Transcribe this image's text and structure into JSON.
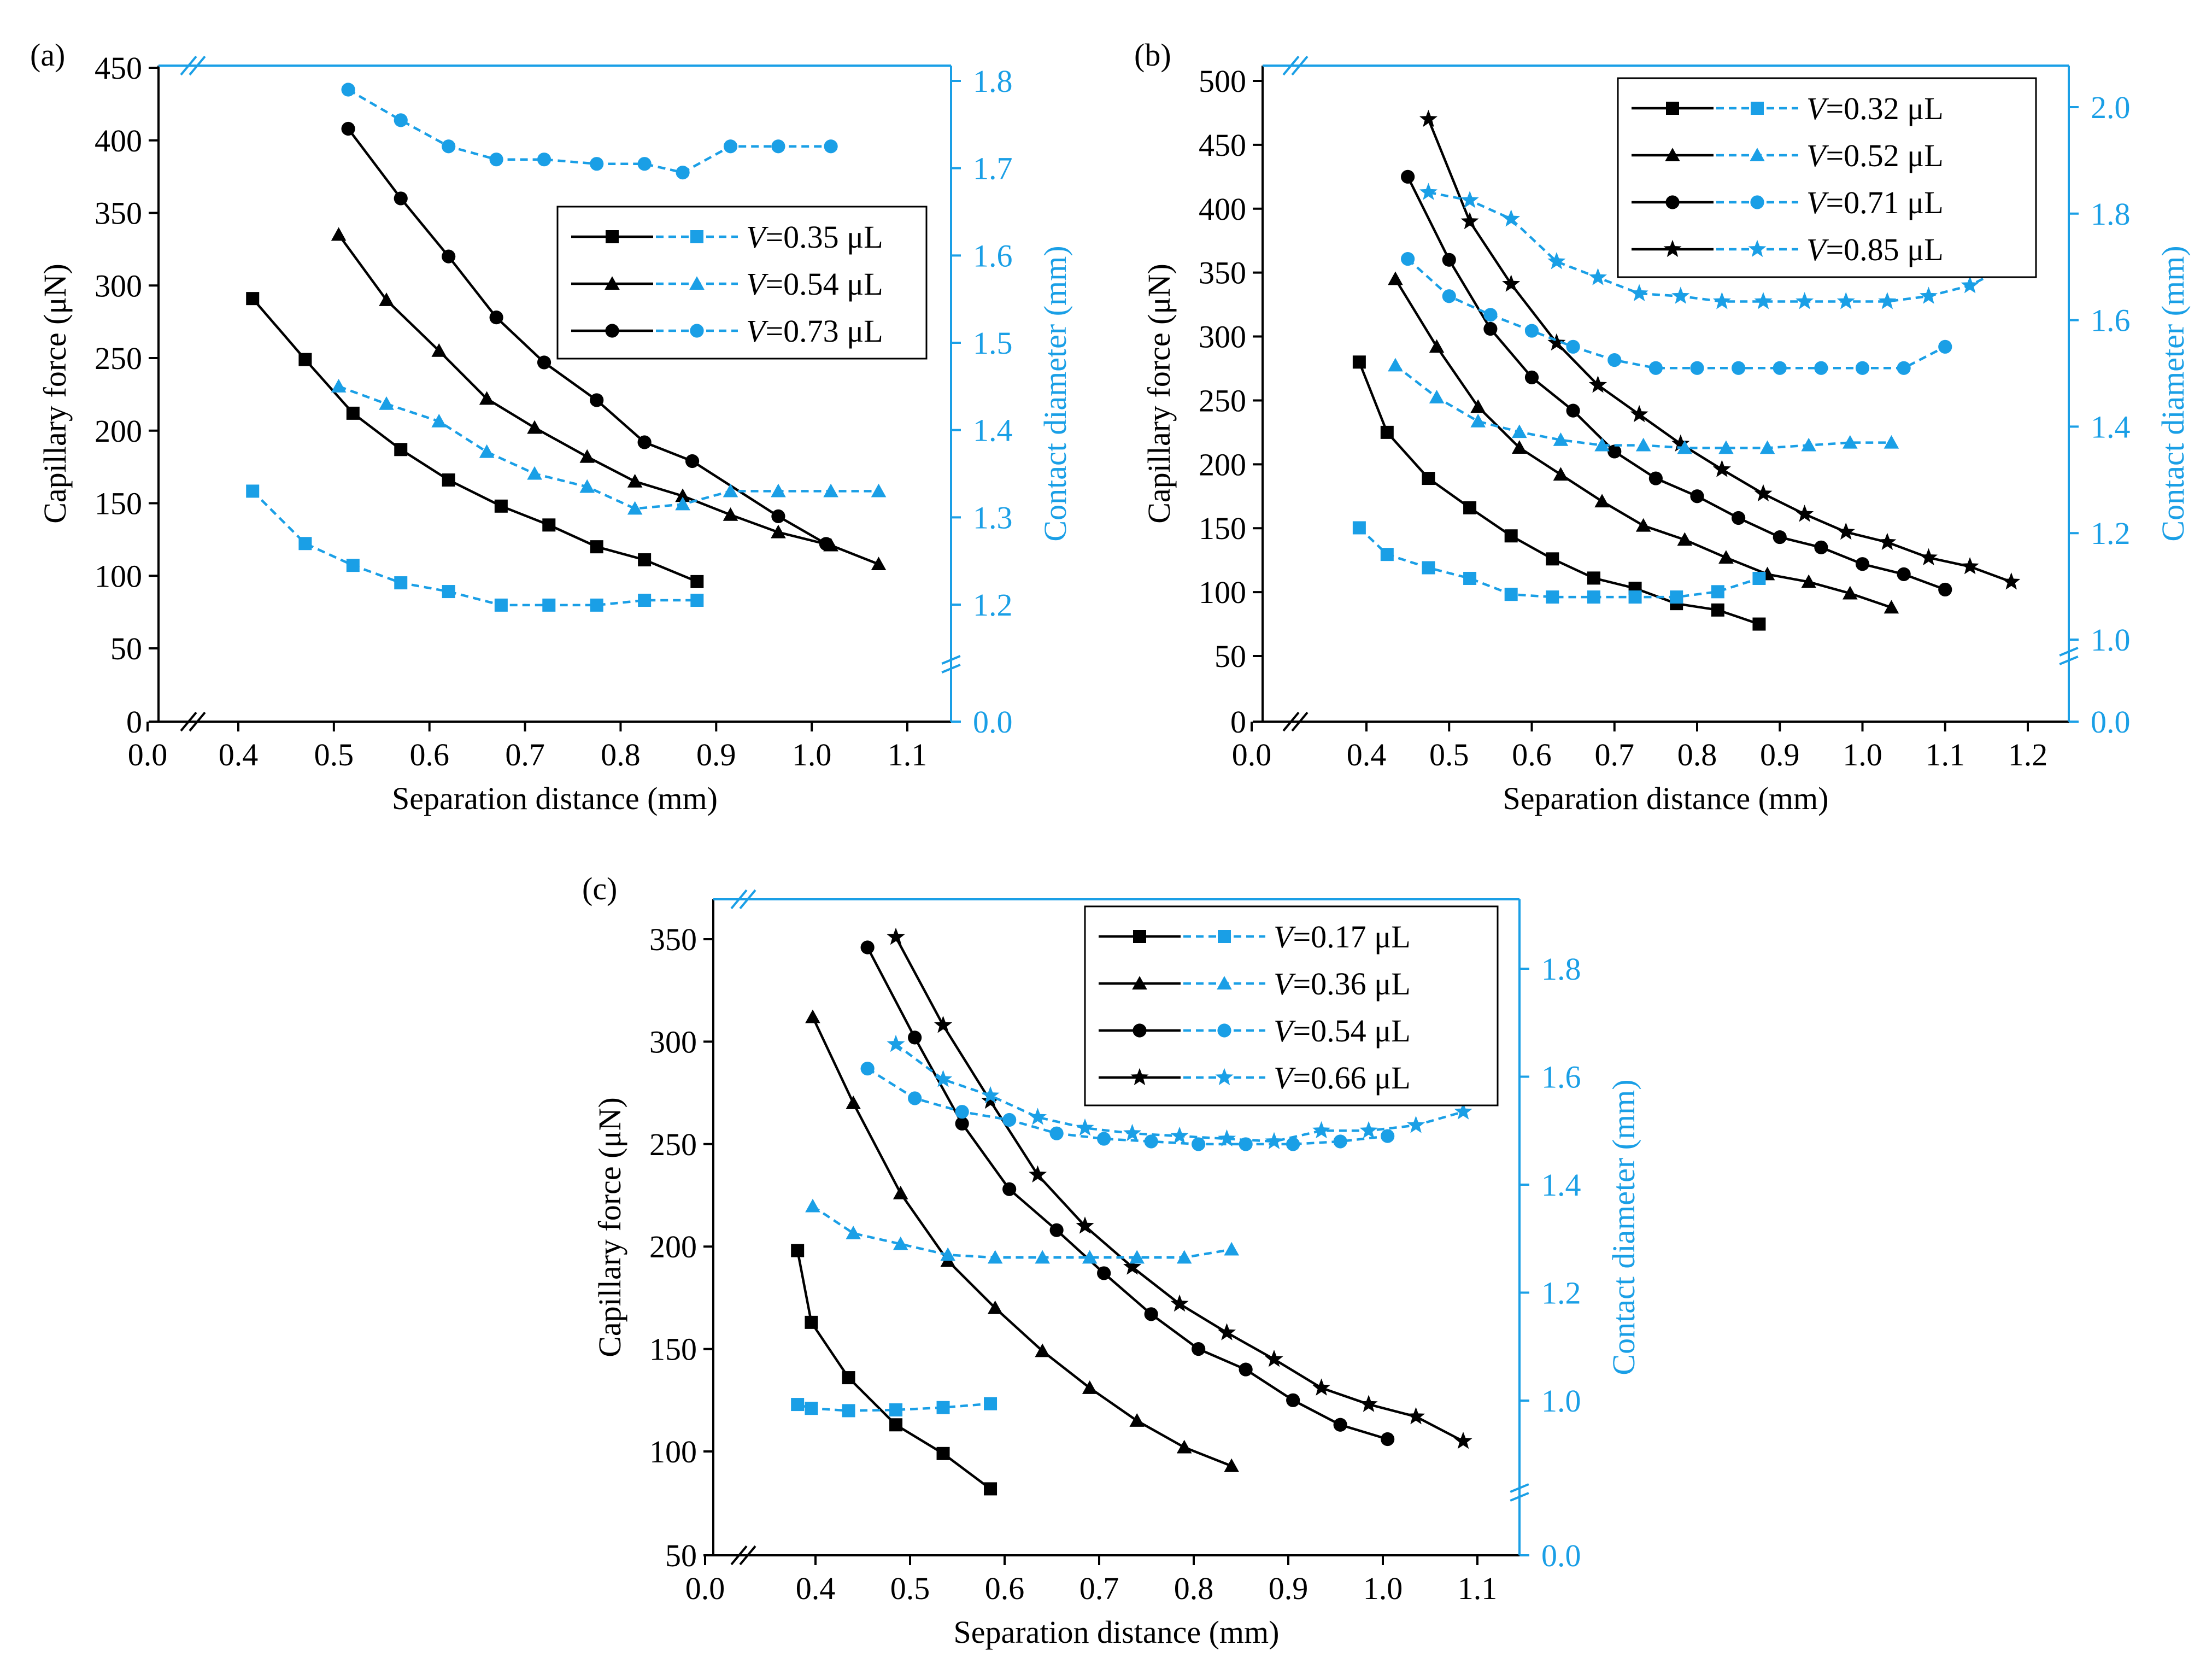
{
  "colors": {
    "force": "#000000",
    "diameter": "#1a9fe6"
  },
  "chart_data": [
    {
      "panel_label": "(a)",
      "type": "line",
      "xlabel": "Separation distance (mm)",
      "ylabel_left": "Capillary force (μN)",
      "ylabel_right": "Contact diameter (mm)",
      "x_axis": {
        "range": [
          0.0,
          1.15
        ],
        "break_after": 0.0,
        "ticks": [
          "0.0",
          "0.4",
          "0.5",
          "0.6",
          "0.7",
          "0.8",
          "0.9",
          "1.0",
          "1.1"
        ]
      },
      "y_left": {
        "range": [
          0,
          450
        ],
        "break_after": 0,
        "ticks": [
          "0",
          "50",
          "100",
          "150",
          "200",
          "250",
          "300",
          "350",
          "400",
          "450"
        ]
      },
      "y_right": {
        "range": [
          0.0,
          1.82
        ],
        "break": [
          0.0,
          1.15
        ],
        "ticks": [
          "0.0",
          "1.2",
          "1.3",
          "1.4",
          "1.5",
          "1.6",
          "1.7",
          "1.8"
        ]
      },
      "legend": {
        "position": "right",
        "entries": [
          {
            "prefix": "V",
            "text": "=0.35 μL",
            "marker": "square"
          },
          {
            "prefix": "V",
            "text": "=0.54 μL",
            "marker": "triangle"
          },
          {
            "prefix": "V",
            "text": "=0.73 μL",
            "marker": "circle"
          }
        ]
      },
      "series": [
        {
          "name": "V=0.35 μL",
          "quantity": "capillary force",
          "axis": "left",
          "marker": "square",
          "x": [
            0.415,
            0.47,
            0.52,
            0.57,
            0.62,
            0.675,
            0.725,
            0.775,
            0.825,
            0.88
          ],
          "y": [
            291,
            249,
            212,
            187,
            166,
            148,
            135,
            120,
            111,
            96
          ]
        },
        {
          "name": "V=0.54 μL",
          "quantity": "capillary force",
          "axis": "left",
          "marker": "triangle",
          "x": [
            0.505,
            0.555,
            0.61,
            0.66,
            0.71,
            0.765,
            0.815,
            0.865,
            0.915,
            0.965,
            1.02,
            1.07
          ],
          "y": [
            335,
            290,
            255,
            222,
            202,
            182,
            165,
            155,
            142,
            130,
            121,
            108
          ]
        },
        {
          "name": "V=0.73 μL",
          "quantity": "capillary force",
          "axis": "left",
          "marker": "circle",
          "x": [
            0.515,
            0.57,
            0.62,
            0.67,
            0.72,
            0.775,
            0.825,
            0.875,
            0.965,
            1.015
          ],
          "y": [
            408,
            360,
            320,
            278,
            247,
            221,
            192,
            179,
            141,
            122
          ]
        },
        {
          "name": "V=0.35 μL",
          "quantity": "contact diameter",
          "axis": "right",
          "marker": "square",
          "x": [
            0.415,
            0.47,
            0.52,
            0.57,
            0.62,
            0.675,
            0.725,
            0.775,
            0.825,
            0.88
          ],
          "y": [
            1.33,
            1.27,
            1.245,
            1.225,
            1.215,
            1.195,
            1.195,
            1.195,
            1.205,
            1.205
          ]
        },
        {
          "name": "V=0.54 μL",
          "quantity": "contact diameter",
          "axis": "right",
          "marker": "triangle",
          "x": [
            0.505,
            0.555,
            0.61,
            0.66,
            0.71,
            0.765,
            0.815,
            0.865,
            0.915,
            0.965,
            1.02,
            1.07
          ],
          "y": [
            1.45,
            1.43,
            1.41,
            1.375,
            1.35,
            1.335,
            1.31,
            1.315,
            1.33,
            1.33,
            1.33,
            1.33
          ]
        },
        {
          "name": "V=0.73 μL",
          "quantity": "contact diameter",
          "axis": "right",
          "marker": "circle",
          "x": [
            0.515,
            0.57,
            0.62,
            0.67,
            0.72,
            0.775,
            0.825,
            0.865,
            0.915,
            0.965,
            1.02
          ],
          "y": [
            1.79,
            1.755,
            1.725,
            1.71,
            1.71,
            1.705,
            1.705,
            1.695,
            1.725,
            1.725,
            1.725
          ]
        }
      ]
    },
    {
      "panel_label": "(b)",
      "type": "line",
      "xlabel": "Separation distance (mm)",
      "ylabel_left": "Capillary force (μN)",
      "ylabel_right": "Contact diameter (mm)",
      "x_axis": {
        "range": [
          0.0,
          1.25
        ],
        "break_after": 0.0,
        "ticks": [
          "0.0",
          "0.4",
          "0.5",
          "0.6",
          "0.7",
          "0.8",
          "0.9",
          "1.0",
          "1.1",
          "1.2"
        ]
      },
      "y_left": {
        "range": [
          0,
          510
        ],
        "break_after": 0,
        "ticks": [
          "0",
          "50",
          "100",
          "150",
          "200",
          "250",
          "300",
          "350",
          "400",
          "450",
          "500"
        ]
      },
      "y_right": {
        "range": [
          0.0,
          2.1
        ],
        "break": [
          0.0,
          1.0
        ],
        "ticks": [
          "0.0",
          "1.0",
          "1.2",
          "1.4",
          "1.6",
          "1.8",
          "2.0"
        ]
      },
      "legend": {
        "position": "top-right",
        "entries": [
          {
            "prefix": "V",
            "text": "=0.32 μL",
            "marker": "square"
          },
          {
            "prefix": "V",
            "text": "=0.52 μL",
            "marker": "triangle"
          },
          {
            "prefix": "V",
            "text": "=0.71 μL",
            "marker": "circle"
          },
          {
            "prefix": "V",
            "text": "=0.85 μL",
            "marker": "star"
          }
        ]
      },
      "series": [
        {
          "name": "V=0.32 μL",
          "quantity": "capillary force",
          "axis": "left",
          "marker": "square",
          "x": [
            0.375,
            0.425,
            0.475,
            0.525,
            0.575,
            0.625,
            0.675,
            0.725,
            0.775,
            0.825,
            0.875
          ],
          "y": [
            280,
            225,
            189,
            166,
            144,
            126,
            111,
            103,
            91,
            86,
            75
          ]
        },
        {
          "name": "V=0.52 μL",
          "quantity": "capillary force",
          "axis": "left",
          "marker": "triangle",
          "x": [
            0.435,
            0.485,
            0.535,
            0.585,
            0.635,
            0.685,
            0.735,
            0.785,
            0.835,
            0.885,
            0.935,
            0.985,
            1.035
          ],
          "y": [
            345,
            292,
            245,
            213,
            192,
            171,
            152,
            141,
            127,
            114,
            108,
            99,
            88
          ]
        },
        {
          "name": "V=0.71 μL",
          "quantity": "capillary force",
          "axis": "left",
          "marker": "circle",
          "x": [
            0.45,
            0.5,
            0.55,
            0.6,
            0.65,
            0.7,
            0.75,
            0.8,
            0.85,
            0.9,
            0.95,
            1.0,
            1.05,
            1.1
          ],
          "y": [
            425,
            360,
            306,
            268,
            242,
            210,
            189,
            175,
            158,
            143,
            135,
            122,
            114,
            102
          ]
        },
        {
          "name": "V=0.85 μL",
          "quantity": "capillary force",
          "axis": "left",
          "marker": "star",
          "x": [
            0.475,
            0.525,
            0.575,
            0.63,
            0.68,
            0.73,
            0.78,
            0.83,
            0.88,
            0.93,
            0.98,
            1.03,
            1.08,
            1.13,
            1.18
          ],
          "y": [
            470,
            390,
            341,
            295,
            262,
            239,
            216,
            196,
            177,
            161,
            147,
            139,
            127,
            120,
            108
          ]
        },
        {
          "name": "V=0.32 μL",
          "quantity": "contact diameter",
          "axis": "right",
          "marker": "square",
          "x": [
            0.375,
            0.425,
            0.475,
            0.525,
            0.575,
            0.625,
            0.675,
            0.725,
            0.775,
            0.825,
            0.875
          ],
          "y": [
            1.21,
            1.16,
            1.135,
            1.115,
            1.085,
            1.08,
            1.08,
            1.08,
            1.08,
            1.09,
            1.115
          ]
        },
        {
          "name": "V=0.52 μL",
          "quantity": "contact diameter",
          "axis": "right",
          "marker": "triangle",
          "x": [
            0.435,
            0.485,
            0.535,
            0.585,
            0.635,
            0.685,
            0.735,
            0.785,
            0.835,
            0.885,
            0.935,
            0.985,
            1.035
          ],
          "y": [
            1.515,
            1.455,
            1.41,
            1.39,
            1.375,
            1.365,
            1.365,
            1.36,
            1.36,
            1.36,
            1.365,
            1.37,
            1.37
          ]
        },
        {
          "name": "V=0.71 μL",
          "quantity": "contact diameter",
          "axis": "right",
          "marker": "circle",
          "x": [
            0.45,
            0.5,
            0.55,
            0.6,
            0.65,
            0.7,
            0.75,
            0.8,
            0.85,
            0.9,
            0.95,
            1.0,
            1.05,
            1.1
          ],
          "y": [
            1.715,
            1.645,
            1.61,
            1.58,
            1.55,
            1.525,
            1.51,
            1.51,
            1.51,
            1.51,
            1.51,
            1.51,
            1.51,
            1.55
          ]
        },
        {
          "name": "V=0.85 μL",
          "quantity": "contact diameter",
          "axis": "right",
          "marker": "star",
          "x": [
            0.475,
            0.525,
            0.575,
            0.63,
            0.68,
            0.73,
            0.78,
            0.83,
            0.88,
            0.93,
            0.98,
            1.03,
            1.08,
            1.13,
            1.18
          ],
          "y": [
            1.84,
            1.825,
            1.79,
            1.71,
            1.68,
            1.65,
            1.645,
            1.635,
            1.635,
            1.635,
            1.635,
            1.635,
            1.645,
            1.665,
            1.705
          ]
        }
      ]
    },
    {
      "panel_label": "(c)",
      "type": "line",
      "xlabel": "Separation distance (mm)",
      "ylabel_left": "Capillary force (μN)",
      "ylabel_right": "Contact diameter (mm)",
      "x_axis": {
        "range": [
          0.0,
          1.15
        ],
        "break_after": 0.0,
        "ticks": [
          "0.0",
          "0.4",
          "0.5",
          "0.6",
          "0.7",
          "0.8",
          "0.9",
          "1.0",
          "1.1"
        ]
      },
      "y_left": {
        "range": [
          50,
          370
        ],
        "break_after": 50,
        "ticks": [
          "50",
          "100",
          "150",
          "200",
          "250",
          "300",
          "350"
        ]
      },
      "y_right": {
        "range": [
          0.0,
          1.92
        ],
        "break": [
          0.0,
          0.82
        ],
        "ticks": [
          "0.0",
          "1.0",
          "1.2",
          "1.4",
          "1.6",
          "1.8"
        ]
      },
      "legend": {
        "position": "top-right",
        "entries": [
          {
            "prefix": "V",
            "text": "=0.17 μL",
            "marker": "square"
          },
          {
            "prefix": "V",
            "text": "=0.36 μL",
            "marker": "triangle"
          },
          {
            "prefix": "V",
            "text": "=0.54 μL",
            "marker": "circle"
          },
          {
            "prefix": "V",
            "text": "=0.66 μL",
            "marker": "star"
          }
        ]
      },
      "series": [
        {
          "name": "V=0.17 μL",
          "quantity": "capillary force",
          "axis": "left",
          "marker": "square",
          "x": [
            0.335,
            0.385,
            0.435,
            0.485,
            0.535,
            0.585
          ],
          "y": [
            198,
            163,
            136,
            113,
            99,
            82
          ]
        },
        {
          "name": "V=0.36 μL",
          "quantity": "capillary force",
          "axis": "left",
          "marker": "triangle",
          "x": [
            0.39,
            0.44,
            0.49,
            0.54,
            0.59,
            0.64,
            0.69,
            0.74,
            0.79,
            0.84
          ],
          "y": [
            312,
            270,
            226,
            193,
            170,
            149,
            131,
            115,
            102,
            93
          ]
        },
        {
          "name": "V=0.54 μL",
          "quantity": "capillary force",
          "axis": "left",
          "marker": "circle",
          "x": [
            0.455,
            0.505,
            0.555,
            0.605,
            0.655,
            0.705,
            0.755,
            0.805,
            0.855,
            0.905,
            0.955,
            1.005
          ],
          "y": [
            346,
            302,
            260,
            228,
            208,
            187,
            167,
            150,
            140,
            125,
            113,
            106
          ]
        },
        {
          "name": "V=0.66 μL",
          "quantity": "capillary force",
          "axis": "left",
          "marker": "star",
          "x": [
            0.485,
            0.535,
            0.585,
            0.635,
            0.685,
            0.735,
            0.785,
            0.835,
            0.885,
            0.935,
            0.985,
            1.035,
            1.085
          ],
          "y": [
            351,
            308,
            271,
            235,
            210,
            190,
            172,
            158,
            145,
            131,
            123,
            117,
            105
          ]
        },
        {
          "name": "V=0.17 μL",
          "quantity": "contact diameter",
          "axis": "right",
          "marker": "square",
          "x": [
            0.335,
            0.385,
            0.435,
            0.485,
            0.535,
            0.585
          ],
          "y": [
            0.975,
            0.95,
            0.935,
            0.94,
            0.955,
            0.98
          ]
        },
        {
          "name": "V=0.36 μL",
          "quantity": "contact diameter",
          "axis": "right",
          "marker": "triangle",
          "x": [
            0.39,
            0.44,
            0.49,
            0.54,
            0.59,
            0.64,
            0.69,
            0.74,
            0.79,
            0.84
          ],
          "y": [
            1.36,
            1.31,
            1.29,
            1.27,
            1.265,
            1.265,
            1.265,
            1.265,
            1.265,
            1.28
          ]
        },
        {
          "name": "V=0.54 μL",
          "quantity": "contact diameter",
          "axis": "right",
          "marker": "circle",
          "x": [
            0.455,
            0.505,
            0.555,
            0.605,
            0.655,
            0.705,
            0.755,
            0.805,
            0.855,
            0.905,
            0.955,
            1.005
          ],
          "y": [
            1.615,
            1.56,
            1.535,
            1.52,
            1.495,
            1.485,
            1.48,
            1.475,
            1.475,
            1.475,
            1.48,
            1.49
          ]
        },
        {
          "name": "V=0.66 μL",
          "quantity": "contact diameter",
          "axis": "right",
          "marker": "star",
          "x": [
            0.485,
            0.535,
            0.585,
            0.635,
            0.685,
            0.735,
            0.785,
            0.835,
            0.885,
            0.935,
            0.985,
            1.035,
            1.085
          ],
          "y": [
            1.66,
            1.595,
            1.565,
            1.525,
            1.505,
            1.495,
            1.49,
            1.485,
            1.48,
            1.5,
            1.5,
            1.51,
            1.535
          ]
        }
      ]
    }
  ]
}
